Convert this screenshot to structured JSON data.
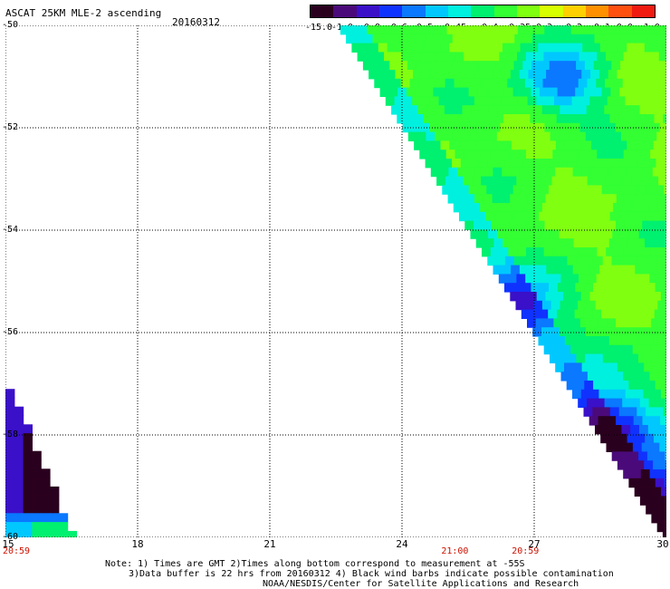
{
  "header": {
    "title": "ASCAT 25KM MLE-2 ascending",
    "date": "20160312"
  },
  "colorbar": {
    "labels": [
      "-15.0",
      "-1.0",
      "-0.8",
      "-0.6",
      "-0.5",
      "-0.45",
      "-0.4",
      "-0.35",
      "-0.3",
      "-0.2",
      "-0.1",
      "0.0",
      "1.0"
    ],
    "colors": [
      "#2a001f",
      "#4b0a7a",
      "#3a10c8",
      "#1032ff",
      "#0a78ff",
      "#00c8ff",
      "#00f0e0",
      "#00f070",
      "#33ff33",
      "#80ff10",
      "#d8ff00",
      "#ffd000",
      "#ff9000",
      "#ff5010",
      "#f01a10"
    ]
  },
  "axes": {
    "x_ticks": [
      "15",
      "18",
      "21",
      "24",
      "27",
      "30"
    ],
    "y_ticks": [
      "-50",
      "-52",
      "-54",
      "-56",
      "-58",
      "-60"
    ],
    "times": [
      {
        "label": "20:59",
        "x": 15.0
      },
      {
        "label": "21:00",
        "x": 25.2
      },
      {
        "label": "20:59",
        "x": 26.8
      }
    ]
  },
  "notes": {
    "line1": "Note: 1) Times are GMT 2)Times along bottom correspond to measurement at -55S",
    "line2": "3)Data buffer is 22 hrs from 20160312 4) Black wind barbs indicate possible contamination",
    "line3": "NOAA/NESDIS/Center for Satellite Applications and Research"
  },
  "map_data": {
    "lon_range": [
      15,
      30
    ],
    "lat_range": [
      -60,
      -50
    ],
    "swaths": [
      {
        "name": "left",
        "lon_span": [
          15.0,
          16.5
        ],
        "lat_span": [
          -60.0,
          -57.1
        ]
      },
      {
        "name": "right",
        "lon_span": [
          22.6,
          30.0
        ],
        "lat_span": [
          -60.0,
          -50.0
        ]
      }
    ],
    "low_value_features": [
      {
        "lat": -51.0,
        "lon": 27.5
      },
      {
        "lat": -55.4,
        "lon": 26.5
      },
      {
        "lat": -57.8,
        "lon": 28.5
      },
      {
        "lat": -59.3,
        "lon": 29.5
      }
    ]
  }
}
